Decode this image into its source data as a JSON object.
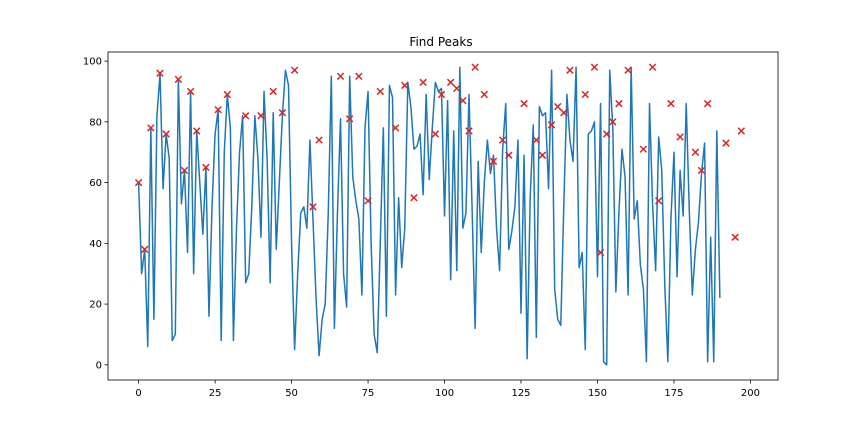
{
  "chart_data": {
    "type": "line",
    "title": "Find Peaks",
    "xlabel": "",
    "ylabel": "",
    "xlim": [
      -10,
      209
    ],
    "ylim": [
      -5,
      103
    ],
    "xticks": [
      0,
      25,
      50,
      75,
      100,
      125,
      150,
      175,
      200
    ],
    "yticks": [
      0,
      20,
      40,
      60,
      80,
      100
    ],
    "grid": false,
    "line_color": "#1f77b4",
    "marker_color": "#d62728",
    "marker": "x",
    "series": [
      {
        "values": [
          60,
          30,
          38,
          6,
          78,
          15,
          82,
          96,
          58,
          76,
          68,
          8,
          10,
          94,
          53,
          64,
          37,
          90,
          30,
          77,
          60,
          43,
          65,
          16,
          52,
          76,
          84,
          8,
          70,
          89,
          78,
          8,
          45,
          70,
          82,
          27,
          30,
          52,
          82,
          68,
          42,
          90,
          68,
          27,
          83,
          38,
          60,
          82,
          97,
          92,
          40,
          5,
          30,
          50,
          52,
          45,
          74,
          48,
          22,
          3,
          15,
          20,
          50,
          95,
          12,
          50,
          81,
          30,
          19,
          95,
          62,
          54,
          48,
          23,
          78,
          90,
          40,
          10,
          4,
          40,
          78,
          16,
          92,
          88,
          23,
          55,
          32,
          45,
          93,
          85,
          71,
          72,
          76,
          56,
          89,
          61,
          78,
          93,
          90,
          91,
          49,
          87,
          28,
          77,
          31,
          98,
          45,
          50,
          89,
          52,
          12,
          67,
          37,
          60,
          74,
          63,
          69,
          45,
          31,
          71,
          86,
          38,
          44,
          52,
          74,
          17,
          69,
          2,
          55,
          79,
          9,
          85,
          82,
          83,
          58,
          97,
          25,
          15,
          13,
          53,
          89,
          74,
          67,
          98,
          32,
          37,
          5,
          76,
          77,
          80,
          29,
          86,
          1,
          0,
          97,
          78,
          24,
          50,
          71,
          62,
          23,
          98,
          48,
          54,
          33,
          25,
          1,
          86,
          53,
          31,
          75,
          64,
          26,
          1,
          48,
          70,
          29,
          64,
          49,
          86,
          51,
          23,
          38,
          47,
          63,
          73,
          1,
          42,
          1,
          77,
          22
        ],
        "peaks": [
          [
            0,
            60
          ],
          [
            2,
            38
          ],
          [
            4,
            78
          ],
          [
            7,
            96
          ],
          [
            9,
            76
          ],
          [
            13,
            94
          ],
          [
            15,
            64
          ],
          [
            17,
            90
          ],
          [
            19,
            77
          ],
          [
            22,
            65
          ],
          [
            26,
            84
          ],
          [
            29,
            89
          ],
          [
            35,
            82
          ],
          [
            40,
            82
          ],
          [
            44,
            90
          ],
          [
            47,
            83
          ],
          [
            51,
            97
          ],
          [
            57,
            52
          ],
          [
            59,
            74
          ],
          [
            66,
            95
          ],
          [
            69,
            81
          ],
          [
            72,
            95
          ],
          [
            75,
            54
          ],
          [
            79,
            90
          ],
          [
            84,
            78
          ],
          [
            87,
            92
          ],
          [
            90,
            55
          ],
          [
            93,
            93
          ],
          [
            97,
            76
          ],
          [
            99,
            89
          ],
          [
            102,
            93
          ],
          [
            104,
            91
          ],
          [
            106,
            87
          ],
          [
            108,
            77
          ],
          [
            110,
            98
          ],
          [
            113,
            89
          ],
          [
            116,
            67
          ],
          [
            119,
            74
          ],
          [
            121,
            69
          ],
          [
            126,
            86
          ],
          [
            130,
            74
          ],
          [
            132,
            69
          ],
          [
            135,
            79
          ],
          [
            137,
            85
          ],
          [
            139,
            83
          ],
          [
            141,
            97
          ],
          [
            146,
            89
          ],
          [
            149,
            98
          ],
          [
            151,
            37
          ],
          [
            153,
            76
          ],
          [
            155,
            80
          ],
          [
            157,
            86
          ],
          [
            160,
            97
          ],
          [
            165,
            71
          ],
          [
            168,
            98
          ],
          [
            170,
            54
          ],
          [
            174,
            86
          ],
          [
            177,
            75
          ],
          [
            182,
            70
          ],
          [
            184,
            64
          ],
          [
            186,
            86
          ],
          [
            192,
            73
          ],
          [
            195,
            42
          ],
          [
            197,
            77
          ]
        ]
      }
    ]
  }
}
